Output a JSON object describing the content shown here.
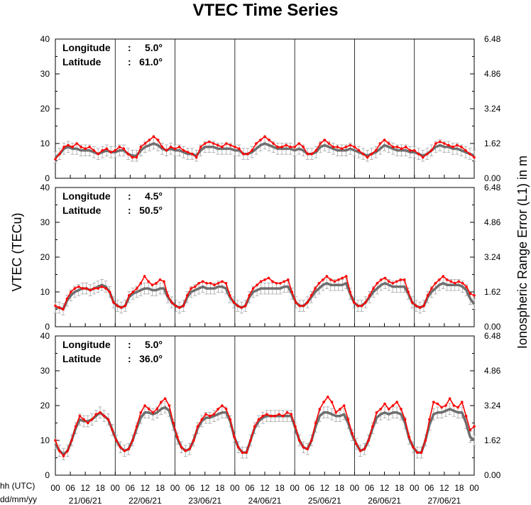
{
  "title": "VTEC Time Series",
  "y_label_left": "VTEC (TECu)",
  "y_label_right": "Ionospheric Range Error (L1) in m",
  "x_caption_hours": "hh (UTC)",
  "x_caption_dates": "dd/mm/yy",
  "colors": {
    "observed": "#ff0000",
    "model": "#6e6e6e",
    "error_bars": "#9a9a9a",
    "axes": "#000000"
  },
  "chart_data": {
    "type": "line",
    "x_hour_ticks": [
      "00",
      "06",
      "12",
      "18",
      "00",
      "06",
      "12",
      "18",
      "00",
      "06",
      "12",
      "18",
      "00",
      "06",
      "12",
      "18",
      "00",
      "06",
      "12",
      "18",
      "00",
      "06",
      "12",
      "18",
      "00",
      "06",
      "12",
      "18",
      "00"
    ],
    "date_labels": [
      "21/06/21",
      "22/06/21",
      "23/06/21",
      "24/06/21",
      "25/06/21",
      "26/06/21",
      "27/06/21"
    ],
    "ylim": [
      0,
      40
    ],
    "y_ticks": [
      "0",
      "10",
      "20",
      "30",
      "40"
    ],
    "ylim_right": [
      0,
      6.48
    ],
    "y_ticks_right": [
      "0.00",
      "1.62",
      "3.24",
      "4.86",
      "6.48"
    ],
    "panels": [
      {
        "lon_label": "Longitude",
        "lon_sep": ":",
        "lon_value": "5.0°",
        "lat_label": "Latitude",
        "lat_sep": ":",
        "lat_value": "61.0°",
        "series": [
          {
            "values": [
              5.5,
              7,
              9,
              9.5,
              9,
              10,
              9,
              8.5,
              9,
              8,
              7,
              8,
              8.5,
              7.5,
              8,
              9,
              8.5,
              7,
              6,
              6,
              9,
              10,
              11,
              12,
              11,
              9,
              8,
              9,
              8.5,
              9,
              8,
              7.5,
              7,
              6,
              9,
              10,
              10.5,
              10,
              9.5,
              9,
              10,
              9.5,
              9,
              8.5,
              7,
              7,
              8,
              10,
              11,
              12,
              11,
              10,
              9,
              9,
              9.5,
              9,
              9,
              10,
              9,
              7,
              7,
              8,
              10,
              11,
              10,
              9,
              9,
              8.5,
              9,
              9.5,
              9,
              8,
              7,
              6,
              7,
              8,
              10,
              11,
              10,
              9,
              9,
              8.5,
              9,
              8,
              8,
              7,
              6,
              7,
              8,
              10,
              10.5,
              10,
              9.5,
              9,
              9.5,
              9,
              8,
              7,
              6
            ]
          },
          {
            "values": [
              6,
              7,
              8.5,
              9,
              8.5,
              8.5,
              8,
              8,
              8,
              7.5,
              7,
              7.5,
              8,
              7.5,
              7.5,
              8,
              8,
              7,
              6.5,
              6.5,
              8,
              9,
              9.5,
              10,
              9.5,
              8.5,
              8,
              8.5,
              8,
              8,
              7.5,
              7,
              7,
              6.5,
              8,
              9,
              9,
              9,
              8.5,
              8.5,
              8.5,
              8.5,
              8,
              8,
              7,
              7,
              7.5,
              8.5,
              9.5,
              10,
              9.5,
              9,
              8.5,
              8.5,
              8.5,
              8.5,
              8,
              8.5,
              8,
              7,
              7,
              7.5,
              9,
              9.5,
              9,
              8.5,
              8,
              8,
              8,
              8.5,
              8,
              7.5,
              7,
              6.5,
              7,
              7.5,
              8.5,
              9.5,
              9,
              8.5,
              8,
              8,
              8,
              7.5,
              7.5,
              7,
              6.5,
              7,
              8,
              9,
              9.5,
              9,
              9,
              8.5,
              8.5,
              8,
              7.5,
              7,
              6.5
            ]
          }
        ]
      },
      {
        "lon_label": "Longitude",
        "lon_sep": ":",
        "lon_value": "4.5°",
        "lat_label": "Latitude",
        "lat_sep": ":",
        "lat_value": "50.5°",
        "series": [
          {
            "values": [
              6,
              5.5,
              5,
              8,
              10,
              11,
              11.5,
              11,
              11,
              10.5,
              11,
              11,
              11.5,
              11,
              10,
              7,
              6,
              5.5,
              6,
              9,
              10,
              11,
              12.5,
              14.5,
              13,
              12,
              12.5,
              13.5,
              13,
              9,
              7,
              6,
              5.5,
              6,
              9,
              11,
              11.5,
              12.5,
              13,
              12.5,
              12.5,
              12,
              12.5,
              13,
              12.5,
              9,
              7,
              6,
              5.5,
              6,
              9,
              11,
              12,
              13,
              13.5,
              14,
              13,
              12.5,
              12.5,
              13,
              13.5,
              10,
              7,
              6,
              6,
              7,
              9,
              11,
              12.5,
              13.5,
              14.5,
              13.5,
              13,
              13.5,
              14,
              14.5,
              10,
              7,
              6,
              6,
              7,
              9,
              11,
              12.5,
              13.5,
              14,
              13,
              12.5,
              13,
              13.5,
              13.5,
              10,
              7,
              6,
              5.5,
              6,
              9,
              11,
              12.5,
              13.5,
              14.5,
              13.5,
              13,
              12.5,
              13,
              12.5,
              11.5,
              9.5,
              9
            ]
          },
          {
            "values": [
              5.5,
              5.5,
              5,
              7.5,
              9,
              10,
              10.5,
              11,
              11,
              10.5,
              11,
              11.5,
              12,
              11.5,
              10,
              7,
              6,
              5.5,
              6,
              8.5,
              9.5,
              10,
              10.5,
              11,
              11,
              10.5,
              10.5,
              11,
              11,
              8.5,
              7,
              6,
              5.5,
              6,
              8.5,
              10,
              10.5,
              11,
              11.5,
              11,
              11,
              11,
              11.5,
              11.5,
              11,
              8.5,
              7,
              6,
              5.5,
              6,
              8.5,
              10,
              10.5,
              11,
              11,
              11,
              11,
              11,
              11,
              11.5,
              11.5,
              9.5,
              7,
              6,
              6,
              7,
              8.5,
              10,
              11,
              12,
              12.5,
              12,
              12,
              12,
              12,
              12.5,
              9.5,
              7,
              6,
              6,
              7,
              8.5,
              10,
              11,
              12,
              12.5,
              12,
              11.5,
              11.5,
              11.5,
              11.5,
              9.5,
              7,
              6,
              5.5,
              6,
              8.5,
              10,
              11,
              12,
              12.5,
              12,
              12,
              12,
              12,
              11.5,
              10.5,
              8,
              6.5
            ]
          }
        ]
      },
      {
        "lon_label": "Longitude",
        "lon_sep": ":",
        "lon_value": "5.0°",
        "lat_label": "Latitude",
        "lat_sep": ":",
        "lat_value": "36.0°",
        "series": [
          {
            "values": [
              10,
              7,
              5.5,
              7,
              10,
              14,
              17,
              16,
              15,
              16,
              17.5,
              18,
              17,
              16,
              13,
              10,
              8,
              7,
              7.5,
              10,
              14,
              18,
              20,
              19,
              18,
              19,
              21,
              22,
              20,
              15,
              11,
              8,
              7,
              7.5,
              10,
              14,
              16,
              17.5,
              17,
              17.5,
              19,
              20,
              19,
              16,
              11,
              8,
              6.5,
              6.5,
              10,
              14,
              16,
              17,
              17.5,
              17,
              17,
              17.5,
              17,
              18,
              17.5,
              14,
              10,
              8,
              7.5,
              10,
              15,
              19,
              21,
              22.5,
              21,
              18,
              19,
              20,
              16,
              12,
              9,
              7,
              7.5,
              10,
              14,
              18,
              19,
              20.5,
              19,
              20,
              21,
              19,
              16,
              11,
              8,
              6.5,
              6.5,
              10,
              16,
              21,
              20.5,
              19.5,
              20,
              22,
              20,
              19.5,
              21,
              17,
              13,
              14
            ]
          },
          {
            "values": [
              9,
              7,
              6,
              7,
              10,
              13.5,
              16,
              15.5,
              15.5,
              16,
              17,
              18,
              17,
              16,
              13,
              10,
              8,
              7,
              7.5,
              10,
              13.5,
              16.5,
              18,
              18,
              17.5,
              18,
              19,
              19.5,
              18.5,
              14.5,
              10.5,
              8,
              7,
              7.5,
              10,
              13.5,
              15.5,
              16.5,
              16.5,
              17,
              17.5,
              18,
              18,
              15.5,
              11,
              8,
              6.5,
              6.5,
              10,
              13.5,
              15.5,
              16.5,
              17,
              17,
              17,
              17,
              17,
              17,
              17,
              13.5,
              10,
              8,
              7.5,
              10,
              14,
              17,
              18,
              18,
              17.5,
              17,
              17,
              17.5,
              15,
              11.5,
              9,
              7,
              7.5,
              10,
              13.5,
              16.5,
              17.5,
              18,
              17.5,
              18,
              18,
              17.5,
              15,
              10.5,
              8,
              6.5,
              6.5,
              10,
              14.5,
              17.5,
              18,
              18,
              18.5,
              19,
              18.5,
              18,
              18,
              15,
              11,
              10
            ]
          }
        ]
      }
    ]
  }
}
